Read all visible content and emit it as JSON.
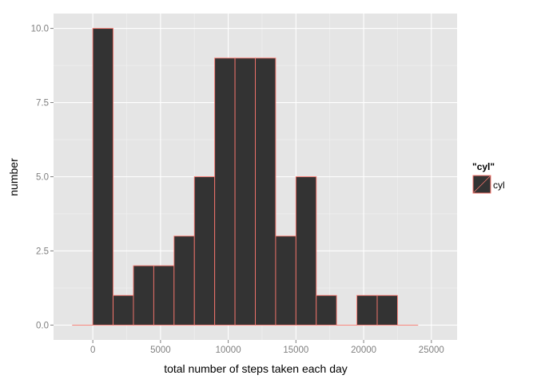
{
  "chart_data": {
    "type": "bar",
    "xlabel": "total number of steps taken each day",
    "ylabel": "number",
    "xlim": [
      -2900,
      26900
    ],
    "ylim": [
      -0.5,
      10.5
    ],
    "x_ticks": [
      0,
      5000,
      10000,
      15000,
      20000,
      25000
    ],
    "x_tick_labels": [
      "0",
      "5000",
      "10000",
      "15000",
      "20000",
      "25000"
    ],
    "y_ticks": [
      0,
      2.5,
      5,
      7.5,
      10
    ],
    "y_tick_labels": [
      "0.0",
      "2.5",
      "5.0",
      "7.5",
      "10.0"
    ],
    "grid": true,
    "legend_position": "right",
    "bins": [
      {
        "x0": -1500,
        "x1": 0,
        "count": 0
      },
      {
        "x0": 0,
        "x1": 1500,
        "count": 10
      },
      {
        "x0": 1500,
        "x1": 3000,
        "count": 1
      },
      {
        "x0": 3000,
        "x1": 4500,
        "count": 2
      },
      {
        "x0": 4500,
        "x1": 6000,
        "count": 2
      },
      {
        "x0": 6000,
        "x1": 7500,
        "count": 3
      },
      {
        "x0": 7500,
        "x1": 9000,
        "count": 5
      },
      {
        "x0": 9000,
        "x1": 10500,
        "count": 9
      },
      {
        "x0": 10500,
        "x1": 12000,
        "count": 9
      },
      {
        "x0": 12000,
        "x1": 13500,
        "count": 9
      },
      {
        "x0": 13500,
        "x1": 15000,
        "count": 3
      },
      {
        "x0": 15000,
        "x1": 16500,
        "count": 5
      },
      {
        "x0": 16500,
        "x1": 18000,
        "count": 1
      },
      {
        "x0": 18000,
        "x1": 19500,
        "count": 0
      },
      {
        "x0": 19500,
        "x1": 21000,
        "count": 1
      },
      {
        "x0": 21000,
        "x1": 22500,
        "count": 1
      },
      {
        "x0": 22500,
        "x1": 24000,
        "count": 0
      }
    ],
    "legend": {
      "title": "\"cyl\"",
      "items": [
        {
          "label": "cyl"
        }
      ]
    },
    "colors": {
      "fill": "#333333",
      "outline": "#f8766d",
      "panel": "#e5e5e5",
      "grid_major": "#ffffff",
      "grid_minor": "#f2f2f2",
      "tick_text": "#7f7f7f",
      "axis_title": "#000000"
    }
  }
}
